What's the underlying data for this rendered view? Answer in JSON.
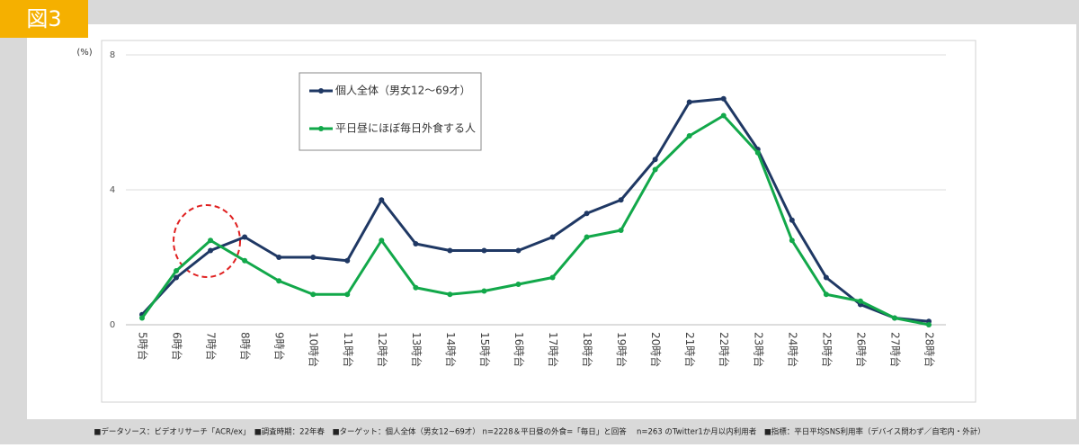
{
  "figure_label": "図3",
  "footnote": "■データソース：ビデオリサーチ「ACR/ex」　■調査時期：22年春　■ターゲット：個人全体（男女12~69才）  n=2228＆平日昼の外食=「毎日」と回答　 n=263 のTwitter1か月以内利用者　■指標：平日平均SNS利用率（デバイス問わず／自宅内・外計）",
  "chart_data": {
    "type": "line",
    "y_label": "(%)",
    "categories": [
      "5時台",
      "6時台",
      "7時台",
      "8時台",
      "9時台",
      "10時台",
      "11時台",
      "12時台",
      "13時台",
      "14時台",
      "15時台",
      "16時台",
      "17時台",
      "18時台",
      "19時台",
      "20時台",
      "21時台",
      "22時台",
      "23時台",
      "24時台",
      "25時台",
      "26時台",
      "27時台",
      "28時台"
    ],
    "series": [
      {
        "name": "個人全体（男女12～69才）",
        "color": "#1f3864",
        "values": [
          0.3,
          1.4,
          2.2,
          2.6,
          2.0,
          2.0,
          1.9,
          3.7,
          2.4,
          2.2,
          2.2,
          2.2,
          2.6,
          3.3,
          3.7,
          4.9,
          6.6,
          6.7,
          5.2,
          3.1,
          1.4,
          0.6,
          0.2,
          0.1
        ]
      },
      {
        "name": "平日昼にほぼ毎日外食する人",
        "color": "#12a84a",
        "values": [
          0.2,
          1.6,
          2.5,
          1.9,
          1.3,
          0.9,
          0.9,
          2.5,
          1.1,
          0.9,
          1.0,
          1.2,
          1.4,
          2.6,
          2.8,
          4.6,
          5.6,
          6.2,
          5.1,
          2.5,
          0.9,
          0.7,
          0.2,
          0.0
        ]
      }
    ],
    "ylim": [
      0,
      8
    ],
    "yticks": [
      0,
      4,
      8
    ],
    "grid": true
  }
}
